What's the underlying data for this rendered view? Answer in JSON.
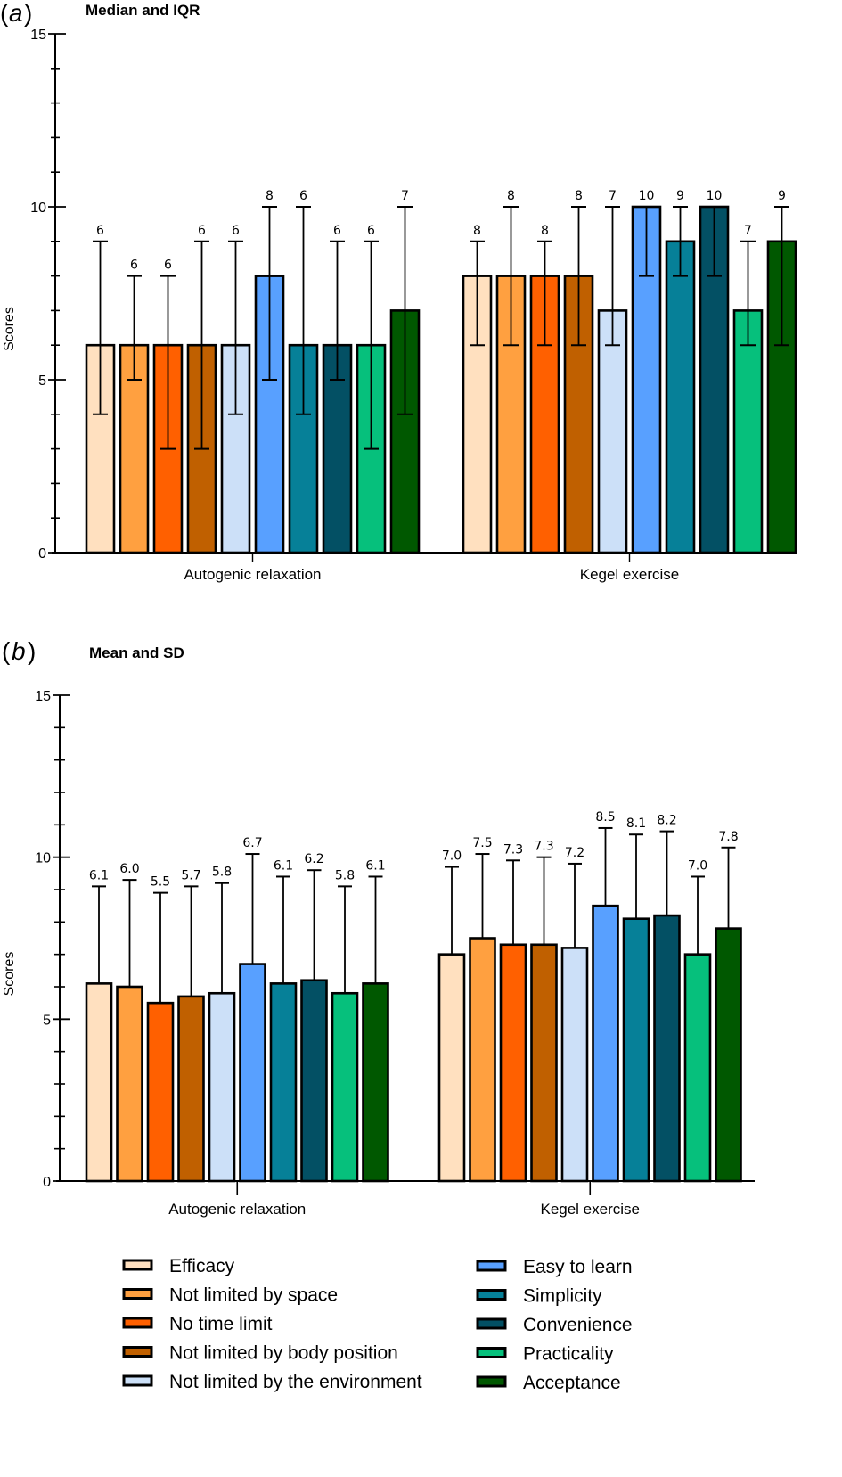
{
  "chart_data": [
    {
      "type": "bar",
      "panel_letter": "a",
      "title": "Median and IQR",
      "ylabel": "Scores",
      "xlabel": "",
      "ylim": [
        0,
        15
      ],
      "yticks_major": [
        0,
        5,
        10,
        15
      ],
      "yticks_minor_step": 1,
      "grid": false,
      "error_type": "IQR",
      "categories": [
        "Autogenic relaxation",
        "Kegel exercise"
      ],
      "series": [
        {
          "name": "Efficacy",
          "color": "#FFE0BF",
          "values": [
            6,
            8
          ],
          "lower": [
            4,
            6
          ],
          "upper": [
            9,
            9
          ],
          "labels": [
            "6",
            "8"
          ]
        },
        {
          "name": "Not limited by space",
          "color": "#FFA040",
          "values": [
            6,
            8
          ],
          "lower": [
            5,
            6
          ],
          "upper": [
            8,
            10
          ],
          "labels": [
            "6",
            "8"
          ]
        },
        {
          "name": "No time limit",
          "color": "#FF6000",
          "values": [
            6,
            8
          ],
          "lower": [
            3,
            6
          ],
          "upper": [
            8,
            9
          ],
          "labels": [
            "6",
            "8"
          ]
        },
        {
          "name": "Not limited by body position",
          "color": "#C06000",
          "values": [
            6,
            8
          ],
          "lower": [
            3,
            6
          ],
          "upper": [
            9,
            10
          ],
          "labels": [
            "6",
            "8"
          ]
        },
        {
          "name": "Not limited by the environment",
          "color": "#CCE0F8",
          "values": [
            6,
            7
          ],
          "lower": [
            4,
            6
          ],
          "upper": [
            9,
            10
          ],
          "labels": [
            "6",
            "7"
          ]
        },
        {
          "name": "Easy to learn",
          "color": "#58A0FF",
          "values": [
            8,
            10
          ],
          "lower": [
            5,
            8
          ],
          "upper": [
            10,
            10
          ],
          "labels": [
            "8",
            "10"
          ]
        },
        {
          "name": "Simplicity",
          "color": "#068098",
          "values": [
            6,
            9
          ],
          "lower": [
            4,
            8
          ],
          "upper": [
            10,
            10
          ],
          "labels": [
            "6",
            "9"
          ]
        },
        {
          "name": "Convenience",
          "color": "#035064",
          "values": [
            6,
            10
          ],
          "lower": [
            5,
            8
          ],
          "upper": [
            9,
            10
          ],
          "labels": [
            "6",
            "10"
          ]
        },
        {
          "name": "Practicality",
          "color": "#06C07C",
          "values": [
            6,
            7
          ],
          "lower": [
            3,
            6
          ],
          "upper": [
            9,
            9
          ],
          "labels": [
            "6",
            "7"
          ]
        },
        {
          "name": "Acceptance",
          "color": "#005800",
          "values": [
            7,
            9
          ],
          "lower": [
            4,
            6
          ],
          "upper": [
            10,
            10
          ],
          "labels": [
            "7",
            "9"
          ]
        }
      ]
    },
    {
      "type": "bar",
      "panel_letter": "b",
      "title": "Mean and SD",
      "ylabel": "Scores",
      "xlabel": "",
      "ylim": [
        0,
        15
      ],
      "yticks_major": [
        0,
        5,
        10,
        15
      ],
      "yticks_minor_step": 1,
      "grid": false,
      "error_type": "SD (upper only)",
      "categories": [
        "Autogenic relaxation",
        "Kegel exercise"
      ],
      "series": [
        {
          "name": "Efficacy",
          "color": "#FFE0BF",
          "values": [
            6.1,
            7.0
          ],
          "sd": [
            3.0,
            2.7
          ],
          "labels": [
            "6.1",
            "7.0"
          ]
        },
        {
          "name": "Not limited by space",
          "color": "#FFA040",
          "values": [
            6.0,
            7.5
          ],
          "sd": [
            3.3,
            2.6
          ],
          "labels": [
            "6.0",
            "7.5"
          ]
        },
        {
          "name": "No time limit",
          "color": "#FF6000",
          "values": [
            5.5,
            7.3
          ],
          "sd": [
            3.4,
            2.6
          ],
          "labels": [
            "5.5",
            "7.3"
          ]
        },
        {
          "name": "Not limited by body position",
          "color": "#C06000",
          "values": [
            5.7,
            7.3
          ],
          "sd": [
            3.4,
            2.7
          ],
          "labels": [
            "5.7",
            "7.3"
          ]
        },
        {
          "name": "Not limited by the environment",
          "color": "#CCE0F8",
          "values": [
            5.8,
            7.2
          ],
          "sd": [
            3.4,
            2.6
          ],
          "labels": [
            "5.8",
            "7.2"
          ]
        },
        {
          "name": "Easy to learn",
          "color": "#58A0FF",
          "values": [
            6.7,
            8.5
          ],
          "sd": [
            3.4,
            2.4
          ],
          "labels": [
            "6.7",
            "8.5"
          ]
        },
        {
          "name": "Simplicity",
          "color": "#068098",
          "values": [
            6.1,
            8.1
          ],
          "sd": [
            3.3,
            2.6
          ],
          "labels": [
            "6.1",
            "8.1"
          ]
        },
        {
          "name": "Convenience",
          "color": "#035064",
          "values": [
            6.2,
            8.2
          ],
          "sd": [
            3.4,
            2.6
          ],
          "labels": [
            "6.2",
            "8.2"
          ]
        },
        {
          "name": "Practicality",
          "color": "#06C07C",
          "values": [
            5.8,
            7.0
          ],
          "sd": [
            3.3,
            2.4
          ],
          "labels": [
            "5.8",
            "7.0"
          ]
        },
        {
          "name": "Acceptance",
          "color": "#005800",
          "values": [
            6.1,
            7.8
          ],
          "sd": [
            3.3,
            2.5
          ],
          "labels": [
            "6.1",
            "7.8"
          ]
        }
      ]
    }
  ],
  "legend": {
    "placement": "bottom",
    "left_column": [
      {
        "label": "Efficacy",
        "color": "#FFE0BF"
      },
      {
        "label": "Not limited by space",
        "color": "#FFA040"
      },
      {
        "label": "No time limit",
        "color": "#FF6000"
      },
      {
        "label": "Not limited by body position",
        "color": "#C06000"
      },
      {
        "label": "Not limited by the environment",
        "color": "#CCE0F8"
      }
    ],
    "right_column": [
      {
        "label": "Easy to learn",
        "color": "#58A0FF"
      },
      {
        "label": "Simplicity",
        "color": "#068098"
      },
      {
        "label": "Convenience",
        "color": "#035064"
      },
      {
        "label": "Practicality",
        "color": "#06C07C"
      },
      {
        "label": "Acceptance",
        "color": "#005800"
      }
    ]
  }
}
